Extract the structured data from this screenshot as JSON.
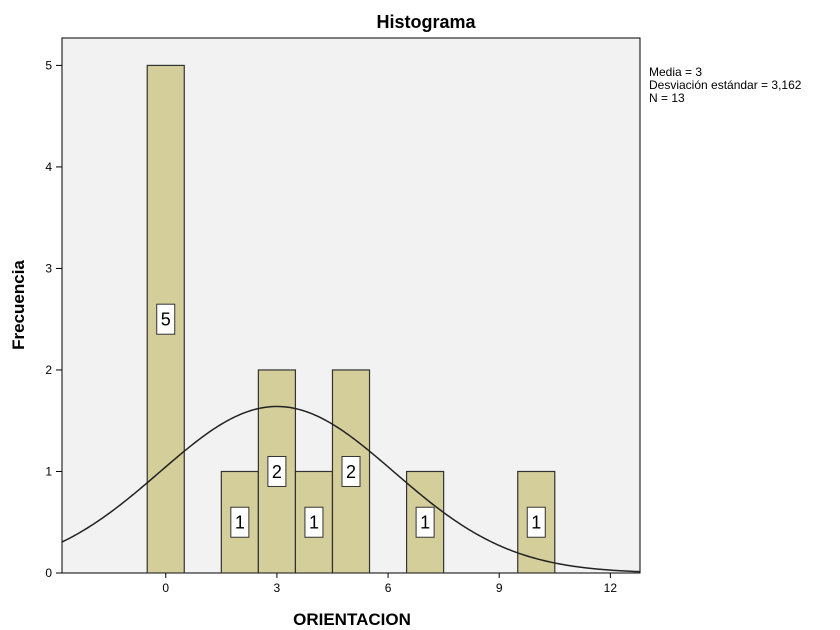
{
  "chart_data": {
    "type": "bar",
    "title": "Histograma",
    "xlabel": "ORIENTACION",
    "ylabel": "Frecuencia",
    "bin_width": 1,
    "bins": [
      {
        "center": 0,
        "count": 5,
        "label": "5"
      },
      {
        "center": 2,
        "count": 1,
        "label": "1"
      },
      {
        "center": 3,
        "count": 2,
        "label": "2"
      },
      {
        "center": 4,
        "count": 1,
        "label": "1"
      },
      {
        "center": 5,
        "count": 2,
        "label": "2"
      },
      {
        "center": 7,
        "count": 1,
        "label": "1"
      },
      {
        "center": 10,
        "count": 1,
        "label": "1"
      }
    ],
    "xlim": [
      -2.8,
      12.8
    ],
    "ylim": [
      0,
      5.27
    ],
    "x_ticks": [
      0,
      3,
      6,
      9,
      12
    ],
    "x_tick_labels": [
      "0",
      "3",
      "6",
      "9",
      "12"
    ],
    "y_ticks": [
      0,
      1,
      2,
      3,
      4,
      5
    ],
    "y_tick_labels": [
      "0",
      "1",
      "2",
      "3",
      "4",
      "5"
    ],
    "normal_curve": {
      "mean": 3,
      "sd": 3.162,
      "n": 13,
      "bin_width": 1
    },
    "stats": {
      "media": "Media = 3",
      "desviacion": "Desviación estándar = 3,162",
      "n": "N = 13"
    },
    "grid": false,
    "colors": {
      "bar_fill": "#D4CE9A",
      "bar_stroke": "#333333",
      "plot_background": "#F2F2F2",
      "curve": "#222222"
    }
  }
}
